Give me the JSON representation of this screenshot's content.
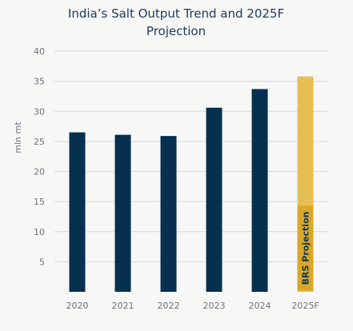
{
  "chart_data": {
    "type": "bar",
    "title": "India's Salt Output Trend and 2025F Projection",
    "title_lines": [
      "India’s Salt Output Trend and 2025F",
      "Projection"
    ],
    "ylabel": "mln mt",
    "ylim": [
      0,
      40
    ],
    "yticks": [
      5,
      10,
      15,
      20,
      25,
      30,
      35,
      40
    ],
    "categories": [
      "2020",
      "2021",
      "2022",
      "2023",
      "2024",
      "2025F"
    ],
    "values": [
      26.5,
      26.1,
      25.9,
      30.6,
      33.7,
      35.8
    ],
    "projected_flags": [
      false,
      false,
      false,
      false,
      false,
      true
    ],
    "annotation": "BRS Projection",
    "grid": true,
    "colors": {
      "actual": "#06304f",
      "projected": "#e9c45d",
      "projected_hatch": "#d8ad38",
      "badge": "#d9a826",
      "title": "#1b3a5c",
      "tick": "#6d737a",
      "grid": "#d9d9d9",
      "background": "#f7f7f5"
    }
  }
}
